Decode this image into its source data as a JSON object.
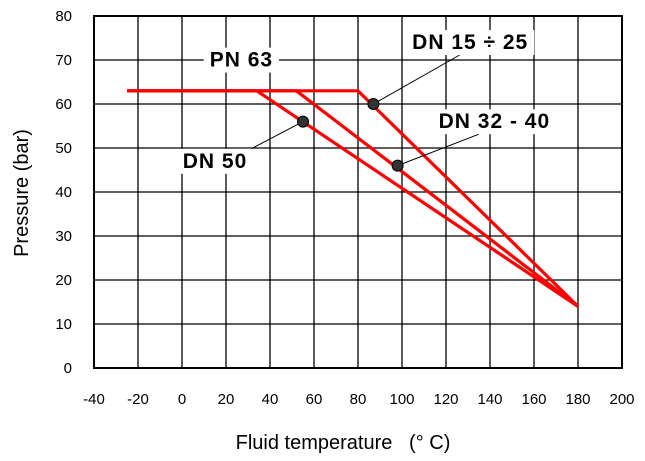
{
  "chart_data": {
    "type": "line",
    "title": "",
    "xlabel": "Fluid temperature   (° C)",
    "ylabel": "Pressure (bar)",
    "xlim": [
      -40,
      200
    ],
    "ylim": [
      0,
      80
    ],
    "x_ticks": [
      "-40",
      "-20",
      "0",
      "20",
      "40",
      "60",
      "80",
      "100",
      "120",
      "140",
      "160",
      "180",
      "200"
    ],
    "y_ticks": [
      "0",
      "10",
      "20",
      "30",
      "40",
      "50",
      "60",
      "70",
      "80"
    ],
    "grid": true,
    "line_color": "#ff0000",
    "series": [
      {
        "name": "DN 15 ÷ 25",
        "x": [
          -25,
          80,
          180
        ],
        "y": [
          63,
          63,
          14
        ]
      },
      {
        "name": "DN 32 - 40",
        "x": [
          -25,
          52,
          180
        ],
        "y": [
          63,
          63,
          14
        ]
      },
      {
        "name": "DN 50",
        "x": [
          -25,
          34,
          180
        ],
        "y": [
          63,
          63,
          14
        ]
      }
    ],
    "annotations": [
      {
        "text": "PN 63",
        "label_x": 27,
        "label_y": 68.5
      },
      {
        "text": "DN 15 ÷ 25",
        "label_x": 131,
        "label_y": 72.5,
        "marker": [
          87,
          60
        ]
      },
      {
        "text": "DN 32 - 40",
        "label_x": 142,
        "label_y": 54.5,
        "marker": [
          98,
          46
        ]
      },
      {
        "text": "DN 50",
        "label_x": 15,
        "label_y": 45.5,
        "marker": [
          55,
          56
        ]
      }
    ]
  }
}
